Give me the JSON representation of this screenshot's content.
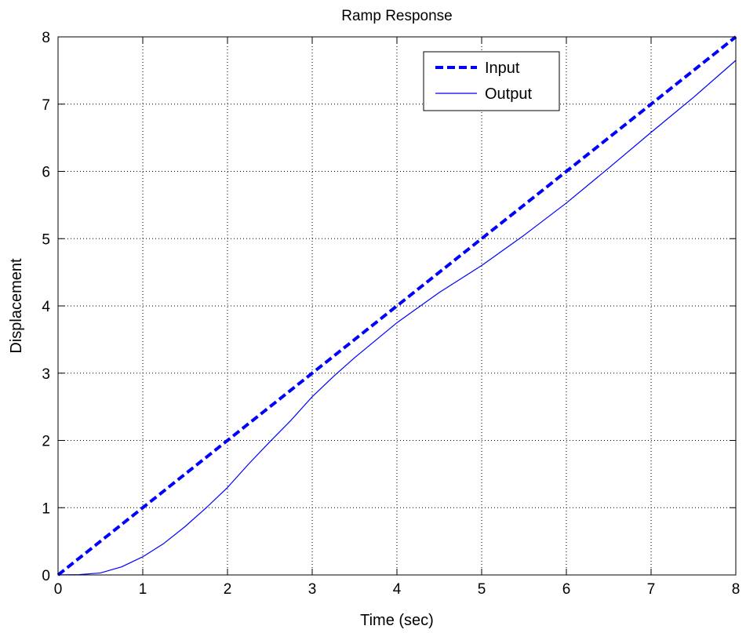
{
  "chart_data": {
    "type": "line",
    "title": "Ramp Response",
    "xlabel": "Time (sec)",
    "ylabel": "Displacement",
    "xlim": [
      0,
      8
    ],
    "ylim": [
      0,
      8
    ],
    "xticks": [
      0,
      1,
      2,
      3,
      4,
      5,
      6,
      7,
      8
    ],
    "yticks": [
      0,
      1,
      2,
      3,
      4,
      5,
      6,
      7,
      8
    ],
    "grid": true,
    "legend_position": "top-right",
    "series": [
      {
        "name": "Input",
        "style": "dashed",
        "color": "#0000ff",
        "x": [
          0,
          1,
          2,
          3,
          4,
          5,
          6,
          7,
          8
        ],
        "y": [
          0,
          1,
          2,
          3,
          4,
          5,
          6,
          7,
          8
        ]
      },
      {
        "name": "Output",
        "style": "solid",
        "color": "#0000ff",
        "x": [
          0,
          0.25,
          0.5,
          0.75,
          1,
          1.25,
          1.5,
          1.75,
          2,
          2.25,
          2.5,
          2.75,
          3,
          3.25,
          3.5,
          4,
          4.5,
          5,
          5.5,
          6,
          6.5,
          7,
          7.5,
          8
        ],
        "y": [
          0,
          0.005,
          0.03,
          0.12,
          0.27,
          0.47,
          0.72,
          1.0,
          1.3,
          1.65,
          1.98,
          2.3,
          2.65,
          2.95,
          3.23,
          3.75,
          4.2,
          4.6,
          5.05,
          5.53,
          6.05,
          6.58,
          7.1,
          7.65
        ]
      }
    ]
  }
}
